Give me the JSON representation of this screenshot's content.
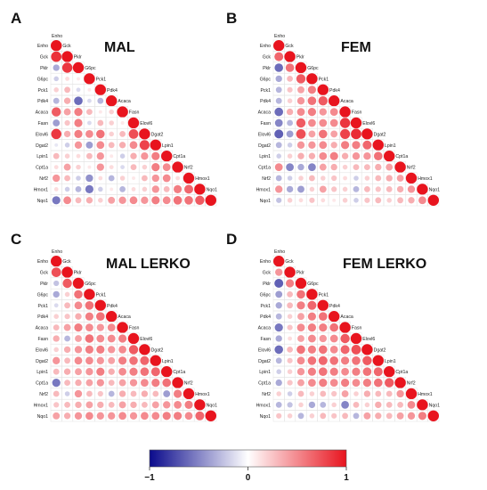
{
  "genes": [
    "Enho",
    "Gck",
    "Pklr",
    "G6pc",
    "Pck1",
    "Pdk4",
    "Acaca",
    "Fasn",
    "Elovl6",
    "Dgat2",
    "Lpin1",
    "Cpt1a",
    "Nrf2",
    "Hmox1",
    "Nqo1"
  ],
  "colorbar": {
    "min": -1,
    "max": 1,
    "ticks": [
      "−1",
      "0",
      "1"
    ],
    "low_color": "#0a0a8c",
    "mid_color": "#ffffff",
    "high_color": "#e8141e"
  },
  "chart_data": [
    {
      "type": "heatmap",
      "letter": "A",
      "title": "MAL",
      "rows": [
        [
          1
        ],
        [
          0.88,
          1
        ],
        [
          -0.35,
          0.85,
          1
        ],
        [
          -0.2,
          0.15,
          0.1,
          1
        ],
        [
          0.2,
          0.3,
          -0.15,
          0.1,
          1
        ],
        [
          -0.3,
          0.35,
          -0.6,
          -0.15,
          -0.3,
          1
        ],
        [
          0.7,
          0.4,
          0.55,
          0.3,
          0.1,
          0.2,
          1
        ],
        [
          -0.4,
          0.25,
          0.55,
          -0.15,
          0.3,
          0.2,
          0.1,
          1
        ],
        [
          0.85,
          0.35,
          0.55,
          0.5,
          0.6,
          0.2,
          0.3,
          0.75,
          1
        ],
        [
          -0.1,
          -0.2,
          0.45,
          -0.4,
          0.5,
          0.3,
          0.35,
          0.5,
          0.8,
          1
        ],
        [
          0.3,
          0.2,
          0.15,
          0.3,
          0.45,
          0.1,
          -0.2,
          0.35,
          0.45,
          0.55,
          1
        ],
        [
          0.15,
          0.4,
          0.2,
          0.1,
          0.45,
          0.15,
          -0.15,
          0.3,
          0.2,
          0.55,
          0.5,
          1
        ],
        [
          0.45,
          0.3,
          -0.2,
          -0.45,
          0.15,
          -0.3,
          0.2,
          0.1,
          0.3,
          0.45,
          0.5,
          0.15,
          1
        ],
        [
          0.15,
          -0.2,
          -0.3,
          -0.55,
          -0.2,
          0.1,
          -0.3,
          0.15,
          0.2,
          0.45,
          0.3,
          0.55,
          0.65,
          1
        ],
        [
          -0.55,
          0.5,
          0.3,
          0.35,
          0.2,
          0.4,
          0.45,
          0.5,
          0.45,
          0.55,
          0.5,
          0.6,
          0.6,
          0.7,
          1
        ]
      ]
    },
    {
      "type": "heatmap",
      "letter": "B",
      "title": "FEM",
      "rows": [
        [
          1
        ],
        [
          0.65,
          1
        ],
        [
          -0.6,
          0.6,
          1
        ],
        [
          -0.35,
          0.3,
          0.7,
          1
        ],
        [
          -0.3,
          0.25,
          0.4,
          0.55,
          1
        ],
        [
          -0.3,
          0.2,
          0.45,
          0.6,
          0.7,
          1
        ],
        [
          -0.6,
          0.35,
          0.5,
          0.55,
          0.45,
          0.5,
          1
        ],
        [
          -0.5,
          -0.3,
          0.7,
          0.5,
          0.5,
          0.5,
          0.85,
          1
        ],
        [
          -0.65,
          -0.4,
          0.75,
          0.4,
          0.6,
          0.4,
          0.8,
          0.9,
          1
        ],
        [
          -0.3,
          -0.2,
          0.45,
          0.45,
          0.5,
          0.35,
          0.55,
          0.55,
          0.65,
          1
        ],
        [
          -0.2,
          0.2,
          0.35,
          0.35,
          0.5,
          0.55,
          0.35,
          0.45,
          0.45,
          0.6,
          1
        ],
        [
          0.5,
          -0.5,
          -0.35,
          -0.5,
          0.4,
          0.35,
          0.2,
          0.3,
          0.3,
          0.35,
          0.4,
          1
        ],
        [
          -0.3,
          -0.2,
          0.2,
          0.3,
          0.2,
          0.25,
          0.15,
          -0.2,
          0.2,
          0.3,
          0.35,
          0.4,
          1
        ],
        [
          0.45,
          -0.35,
          -0.4,
          0.2,
          0.4,
          0.25,
          0.2,
          -0.3,
          0.3,
          0.25,
          0.3,
          0.35,
          0.45,
          1
        ],
        [
          -0.25,
          0.2,
          0.15,
          0.25,
          0.15,
          0.1,
          0.2,
          -0.2,
          0.25,
          0.3,
          0.2,
          0.3,
          0.35,
          0.5,
          1
        ]
      ]
    },
    {
      "type": "heatmap",
      "letter": "C",
      "title": "MAL LERKO",
      "rows": [
        [
          1
        ],
        [
          0.75,
          1
        ],
        [
          -0.25,
          0.7,
          1
        ],
        [
          -0.35,
          0.2,
          0.6,
          1
        ],
        [
          -0.15,
          0.3,
          0.5,
          0.6,
          1
        ],
        [
          0.2,
          0.25,
          0.35,
          0.55,
          0.6,
          1
        ],
        [
          0.3,
          0.4,
          0.55,
          0.5,
          0.45,
          0.5,
          1
        ],
        [
          0.35,
          -0.3,
          0.4,
          0.6,
          0.5,
          0.5,
          0.55,
          1
        ],
        [
          0.2,
          0.35,
          0.45,
          0.55,
          0.55,
          0.45,
          0.5,
          0.7,
          1
        ],
        [
          0.45,
          0.3,
          0.5,
          0.5,
          0.45,
          0.4,
          0.55,
          0.6,
          0.65,
          1
        ],
        [
          0.3,
          0.35,
          0.4,
          0.45,
          0.55,
          0.35,
          0.5,
          0.55,
          0.6,
          0.65,
          1
        ],
        [
          -0.55,
          0.3,
          0.35,
          0.4,
          0.45,
          0.3,
          0.4,
          0.45,
          0.5,
          0.55,
          0.6,
          1
        ],
        [
          0.3,
          -0.2,
          0.45,
          0.3,
          0.25,
          -0.3,
          0.35,
          0.3,
          0.35,
          0.3,
          -0.4,
          0.55,
          1
        ],
        [
          0.25,
          0.3,
          0.35,
          0.4,
          0.35,
          0.3,
          0.4,
          0.35,
          0.3,
          0.4,
          0.45,
          0.5,
          0.55,
          1
        ],
        [
          0.4,
          0.35,
          0.45,
          0.5,
          0.45,
          0.45,
          0.5,
          0.45,
          0.5,
          0.5,
          0.55,
          0.55,
          0.5,
          0.65,
          1
        ]
      ]
    },
    {
      "type": "heatmap",
      "letter": "D",
      "title": "FEM LERKO",
      "rows": [
        [
          1
        ],
        [
          0.45,
          1
        ],
        [
          -0.65,
          0.55,
          1
        ],
        [
          -0.4,
          0.3,
          0.6,
          1
        ],
        [
          -0.35,
          0.3,
          0.55,
          0.65,
          1
        ],
        [
          -0.3,
          0.2,
          0.4,
          0.55,
          0.6,
          1
        ],
        [
          -0.55,
          0.25,
          0.5,
          0.55,
          0.55,
          0.6,
          1
        ],
        [
          -0.35,
          0.15,
          0.4,
          0.5,
          0.45,
          0.5,
          0.7,
          1
        ],
        [
          -0.6,
          0.3,
          0.6,
          0.55,
          0.6,
          0.5,
          0.65,
          0.75,
          1
        ],
        [
          -0.3,
          0.25,
          0.5,
          0.6,
          0.65,
          0.6,
          0.55,
          0.6,
          0.7,
          1
        ],
        [
          -0.2,
          0.2,
          0.45,
          0.55,
          0.6,
          0.55,
          0.5,
          0.55,
          0.6,
          0.65,
          1
        ],
        [
          -0.35,
          0.25,
          0.4,
          0.5,
          0.55,
          0.5,
          0.55,
          0.5,
          0.55,
          0.6,
          0.7,
          1
        ],
        [
          0.2,
          -0.2,
          0.3,
          0.2,
          0.3,
          0.25,
          0.4,
          0.2,
          0.35,
          0.3,
          0.3,
          0.45,
          1
        ],
        [
          -0.3,
          -0.25,
          0.2,
          -0.35,
          -0.3,
          0.2,
          -0.5,
          0.3,
          0.2,
          0.35,
          0.3,
          0.3,
          0.5,
          1
        ],
        [
          0.25,
          0.2,
          -0.3,
          0.2,
          0.3,
          0.25,
          0.3,
          -0.3,
          0.4,
          0.35,
          0.3,
          0.4,
          0.45,
          0.55,
          1
        ]
      ]
    }
  ]
}
